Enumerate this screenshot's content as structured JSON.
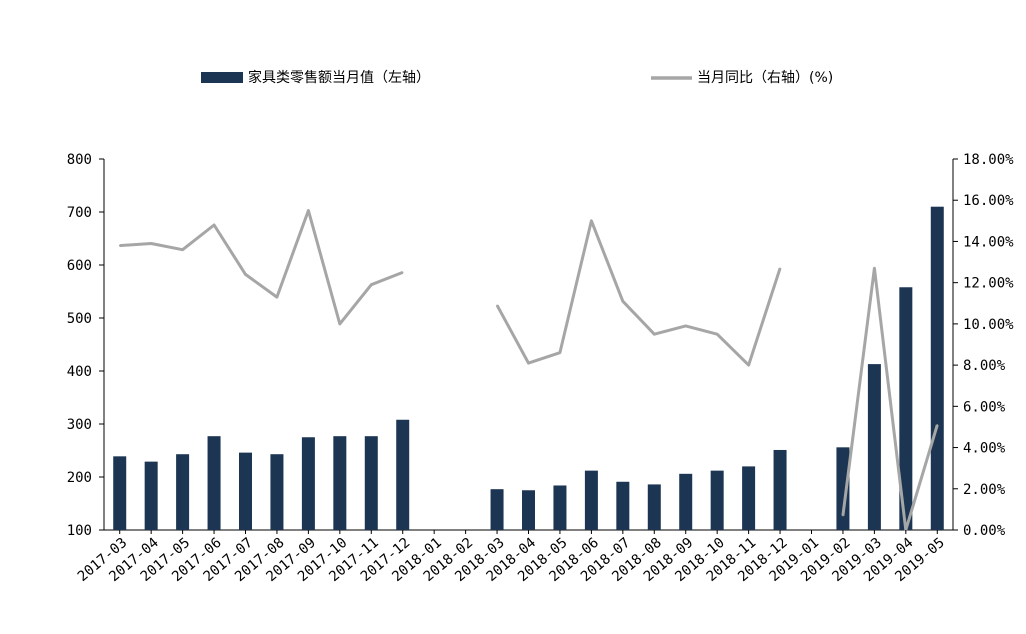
{
  "chart_data": {
    "type": "bar+line",
    "categories": [
      "2017-03",
      "2017-04",
      "2017-05",
      "2017-06",
      "2017-07",
      "2017-08",
      "2017-09",
      "2017-10",
      "2017-11",
      "2017-12",
      "2018-01",
      "2018-02",
      "2018-03",
      "2018-04",
      "2018-05",
      "2018-06",
      "2018-07",
      "2018-08",
      "2018-09",
      "2018-10",
      "2018-11",
      "2018-12",
      "2019-01",
      "2019-02",
      "2019-03",
      "2019-04",
      "2019-05"
    ],
    "series": [
      {
        "name": "家具类零售额当月值（左轴）",
        "type": "bar",
        "axis": "left",
        "color": "#1b3553",
        "values": [
          239,
          229,
          243,
          277,
          246,
          243,
          275,
          277,
          277,
          308,
          null,
          null,
          177,
          175,
          184,
          212,
          191,
          186,
          206,
          212,
          220,
          251,
          null,
          256,
          413,
          558,
          710
        ]
      },
      {
        "name": "当月同比（右轴）(%)",
        "type": "line",
        "axis": "right",
        "color": "#a6a6a6",
        "values": [
          13.8,
          13.9,
          13.6,
          14.8,
          12.4,
          11.3,
          15.5,
          10.0,
          11.9,
          12.5,
          null,
          null,
          10.9,
          8.1,
          8.6,
          15.0,
          11.1,
          9.5,
          9.9,
          9.5,
          8.0,
          12.7,
          null,
          0.7,
          12.7,
          0.0,
          5.1
        ]
      }
    ],
    "left_axis": {
      "min": 100,
      "max": 800,
      "ticks": [
        "100",
        "200",
        "300",
        "400",
        "500",
        "600",
        "700",
        "800"
      ]
    },
    "right_axis": {
      "min": 0,
      "max": 18,
      "ticks": [
        "0.00%",
        "2.00%",
        "4.00%",
        "6.00%",
        "8.00%",
        "10.00%",
        "12.00%",
        "14.00%",
        "16.00%",
        "18.00%"
      ]
    },
    "legend_position": "top",
    "grid": false
  }
}
